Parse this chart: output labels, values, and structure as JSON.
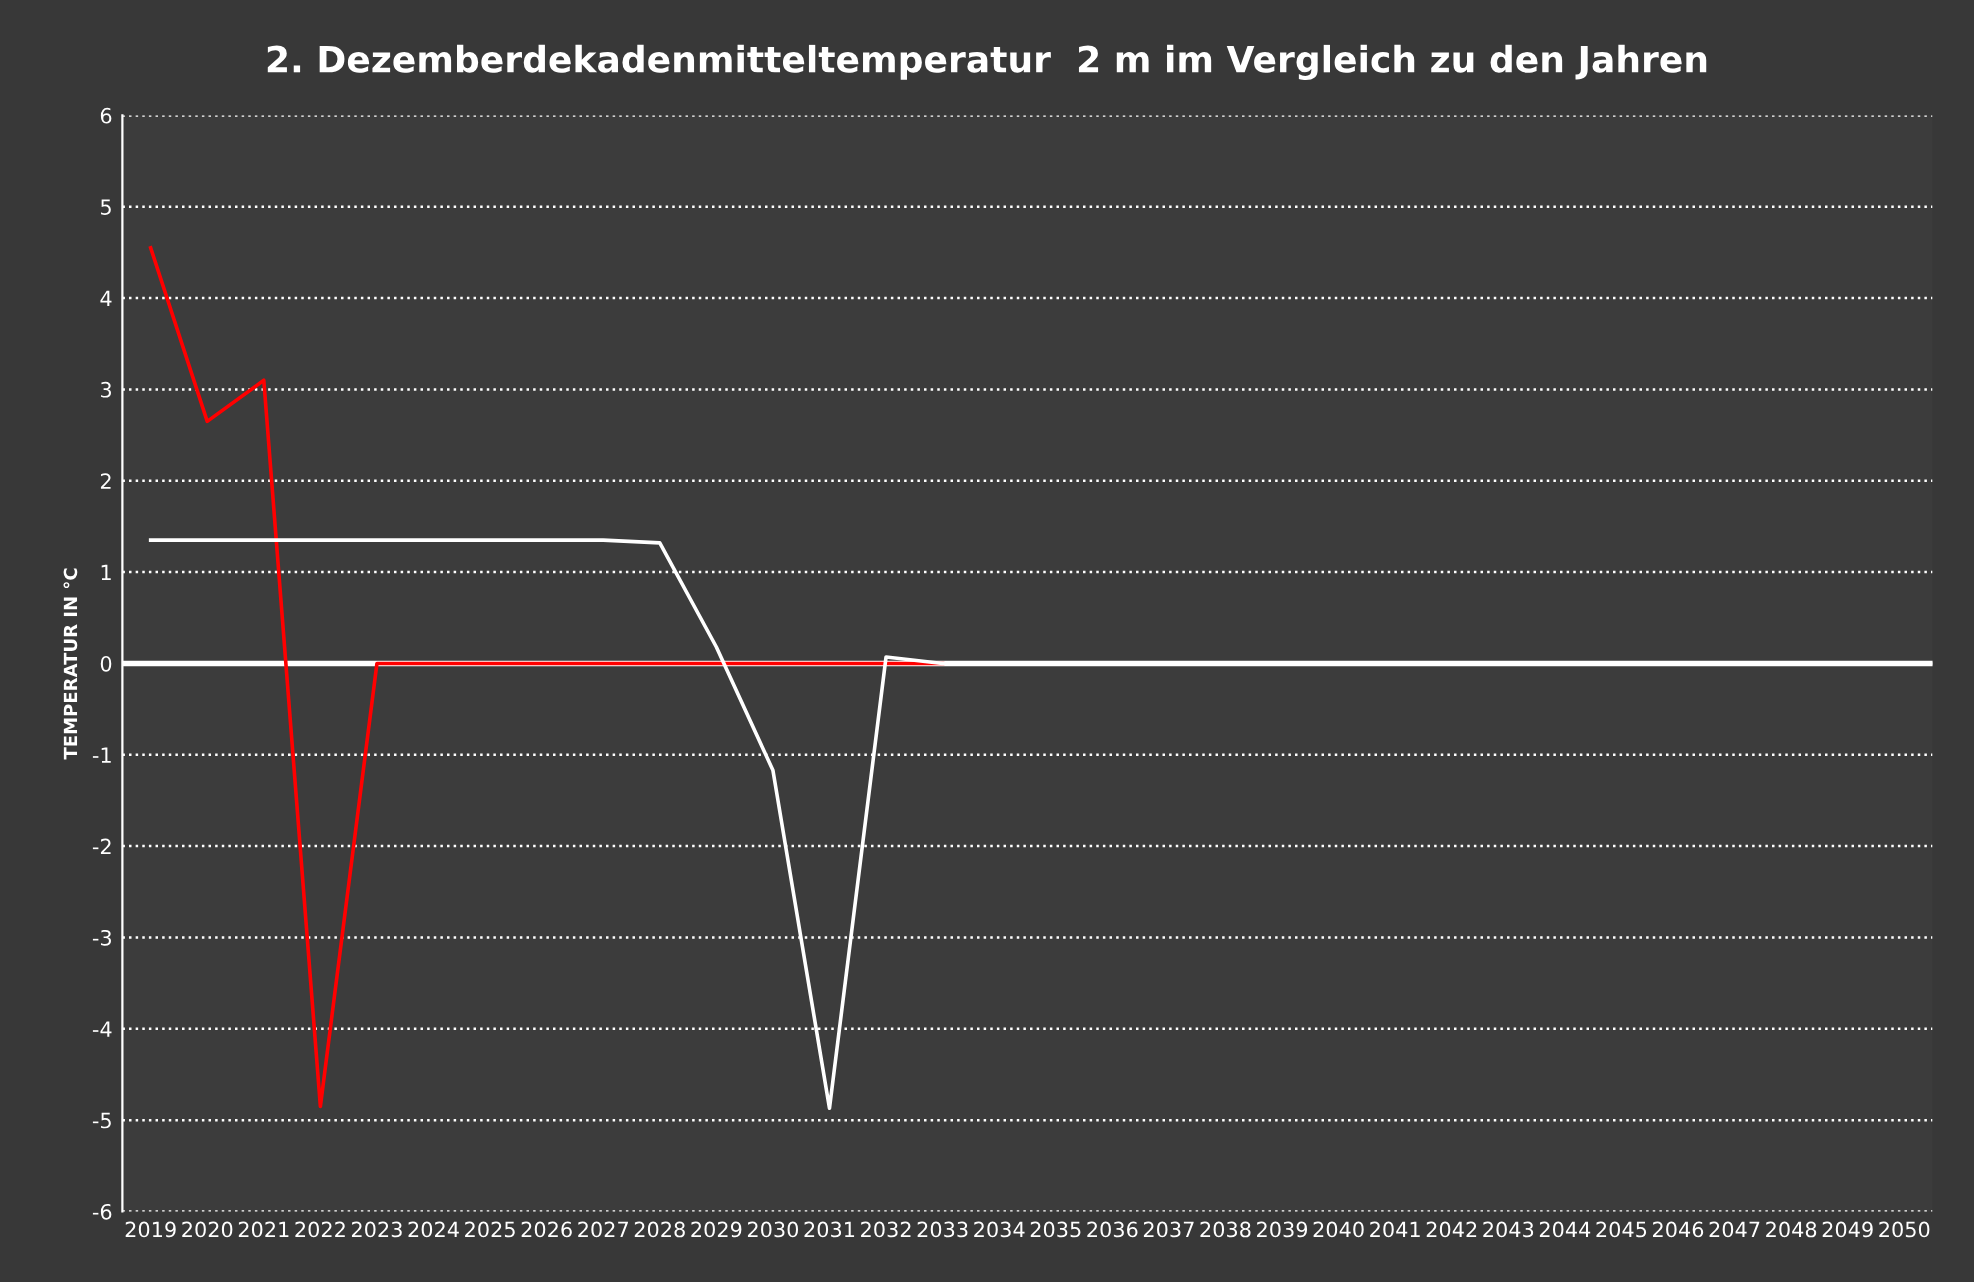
{
  "chart_data": {
    "type": "line",
    "title": "2. Dezemberdekadenmitteltemperatur  2 m im Vergleich zu den Jahren",
    "ylabel": "TEMPERATUR IN °C",
    "categories": [
      "2019",
      "2020",
      "2021",
      "2022",
      "2023",
      "2024",
      "2025",
      "2026",
      "2027",
      "2028",
      "2029",
      "2030",
      "2031",
      "2032",
      "2033",
      "2034",
      "2035",
      "2036",
      "2037",
      "2038",
      "2039",
      "2040",
      "2041",
      "2042",
      "2043",
      "2044",
      "2045",
      "2046",
      "2047",
      "2048",
      "2049",
      "2050"
    ],
    "series": [
      {
        "color": "#ff0000",
        "values": [
          4.55,
          2.65,
          3.1,
          -4.85,
          0,
          0,
          0,
          0,
          0,
          0,
          0,
          0,
          0,
          0,
          0,
          null,
          null,
          null,
          null,
          null,
          null,
          null,
          null,
          null,
          null,
          null,
          null,
          null,
          null,
          null,
          null,
          null
        ]
      },
      {
        "color": "#ffffff",
        "values": [
          1.35,
          1.35,
          1.35,
          1.35,
          1.35,
          1.35,
          1.35,
          1.35,
          1.35,
          1.32,
          0.18,
          -1.17,
          -4.87,
          0.07,
          0,
          0,
          0,
          0,
          0,
          0,
          0,
          0,
          0,
          0,
          0,
          0,
          0,
          0,
          0,
          0,
          0,
          0
        ]
      }
    ],
    "ylim": [
      -6,
      6
    ],
    "yticks": [
      -6,
      -5,
      -4,
      -3,
      -2,
      -1,
      0,
      1,
      2,
      3,
      4,
      5,
      6
    ],
    "grid": "y",
    "line_style": "solid",
    "marker": "none",
    "legend": false,
    "ref_lines": [
      {
        "axis": "y",
        "value": 0,
        "color": "#ffffff"
      }
    ]
  }
}
